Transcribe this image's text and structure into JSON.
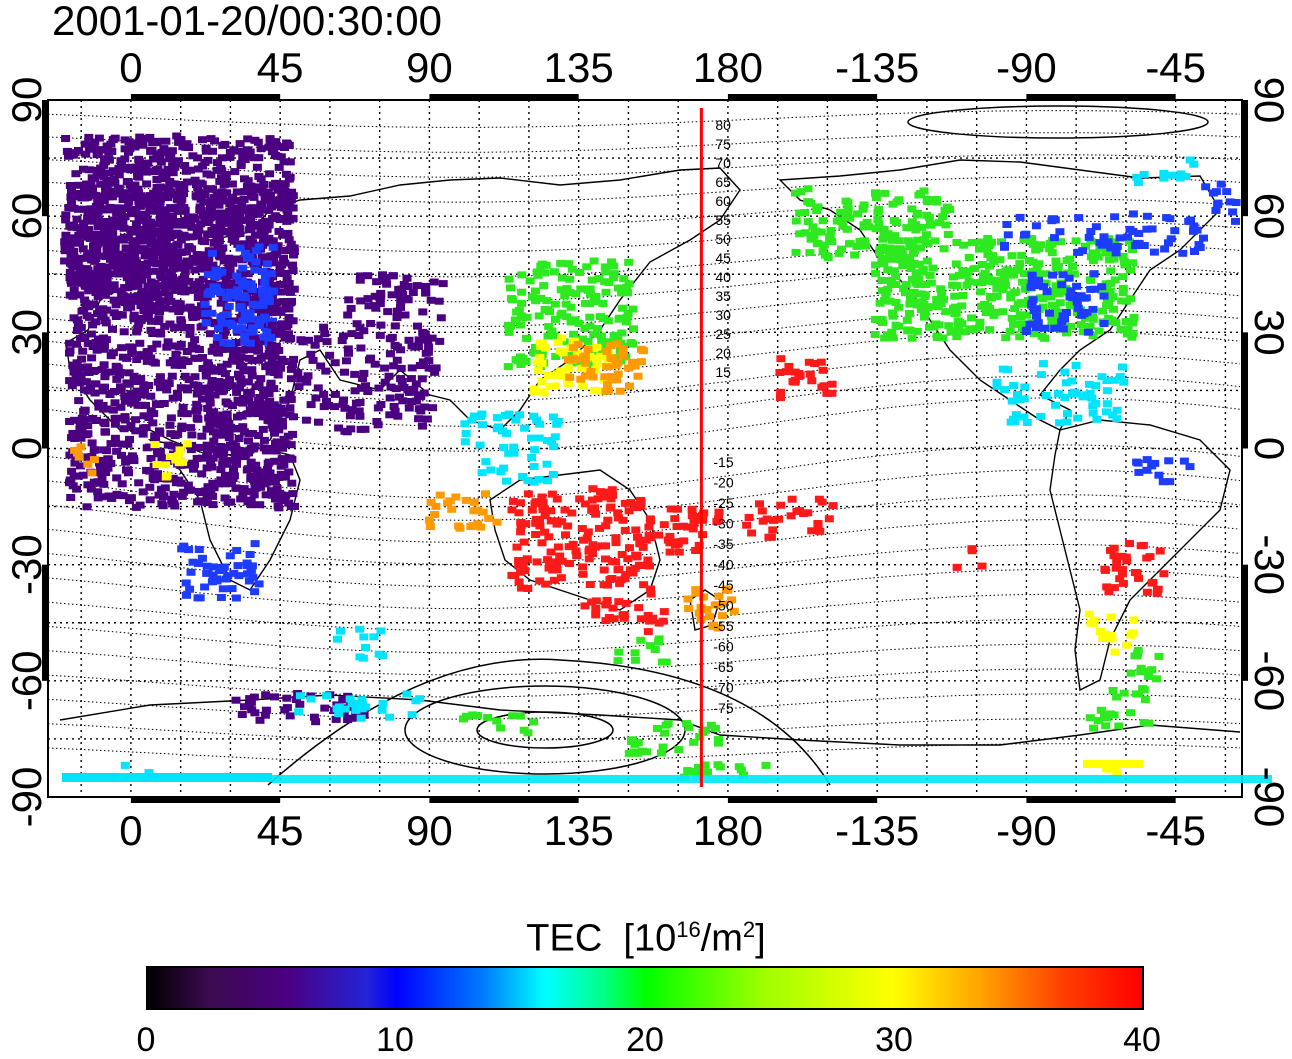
{
  "title": "2001-01-20/00:30:00",
  "axes": {
    "lon_ticks": [
      "0",
      "45",
      "90",
      "135",
      "180",
      "-135",
      "-90",
      "-45"
    ],
    "lat_ticks": [
      "90",
      "60",
      "30",
      "0",
      "-30",
      "-60",
      "-90"
    ]
  },
  "meridian_marker": {
    "longitude": 172,
    "color": "#ff0000"
  },
  "contour_labels": {
    "north": [
      "80",
      "75",
      "70",
      "65",
      "60",
      "55",
      "50",
      "45",
      "40",
      "35",
      "30",
      "25",
      "20",
      "15"
    ],
    "south": [
      "-15",
      "-20",
      "-25",
      "-30",
      "-35",
      "-40",
      "-45",
      "-50",
      "-55",
      "-60",
      "-65",
      "-70",
      "-75"
    ]
  },
  "colorbar": {
    "title_main": "TEC",
    "title_unit_pre": "[10",
    "title_unit_sup": "16",
    "title_unit_mid": "/m",
    "title_unit_sup2": "2",
    "title_unit_post": "]",
    "ticks": [
      "0",
      "10",
      "20",
      "30",
      "40"
    ],
    "min": 0,
    "max": 40
  },
  "colors": {
    "purple": "#4b0082",
    "blue": "#1e3cff",
    "cyan": "#00e5ff",
    "green": "#2ee820",
    "yellow": "#ffff00",
    "orange": "#ff9a00",
    "red": "#ff1a1a"
  }
}
